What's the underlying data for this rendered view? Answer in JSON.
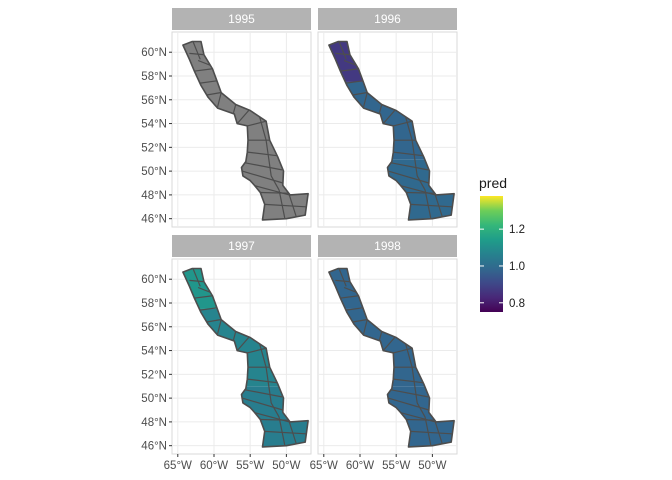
{
  "chart_data": {
    "type": "choropleth-map",
    "title": "",
    "xlabel": "",
    "ylabel": "",
    "facets": [
      "1995",
      "1996",
      "1997",
      "1998"
    ],
    "x_ticks": [
      {
        "value": -65,
        "label": "65°W"
      },
      {
        "value": -60,
        "label": "60°W"
      },
      {
        "value": -55,
        "label": "55°W"
      },
      {
        "value": -50,
        "label": "50°W"
      }
    ],
    "y_ticks": [
      {
        "value": 46,
        "label": "46°N"
      },
      {
        "value": 48,
        "label": "48°N"
      },
      {
        "value": 50,
        "label": "50°N"
      },
      {
        "value": 52,
        "label": "52°N"
      },
      {
        "value": 54,
        "label": "54°N"
      },
      {
        "value": 56,
        "label": "56°N"
      },
      {
        "value": 58,
        "label": "58°N"
      },
      {
        "value": 60,
        "label": "60°N"
      }
    ],
    "xlim": [
      -65.8,
      -46.6
    ],
    "ylim": [
      45.3,
      61.7
    ],
    "outline_lonlat": [
      [
        -64.3,
        60.6
      ],
      [
        -63.0,
        60.9
      ],
      [
        -61.8,
        60.9
      ],
      [
        -61.4,
        59.8
      ],
      [
        -60.2,
        58.6
      ],
      [
        -59.6,
        57.6
      ],
      [
        -59.0,
        56.6
      ],
      [
        -57.0,
        55.6
      ],
      [
        -55.0,
        55.1
      ],
      [
        -52.8,
        54.2
      ],
      [
        -52.3,
        52.6
      ],
      [
        -51.2,
        51.2
      ],
      [
        -50.4,
        50.0
      ],
      [
        -50.5,
        48.8
      ],
      [
        -49.5,
        48.0
      ],
      [
        -47.0,
        48.1
      ],
      [
        -47.4,
        46.3
      ],
      [
        -50.0,
        46.0
      ],
      [
        -53.3,
        45.9
      ],
      [
        -53.0,
        47.2
      ],
      [
        -53.6,
        48.2
      ],
      [
        -54.4,
        48.8
      ],
      [
        -55.0,
        49.2
      ],
      [
        -56.0,
        49.6
      ],
      [
        -56.2,
        50.3
      ],
      [
        -55.6,
        50.8
      ],
      [
        -55.4,
        51.6
      ],
      [
        -55.3,
        52.6
      ],
      [
        -55.4,
        53.8
      ],
      [
        -56.8,
        54.0
      ],
      [
        -57.2,
        54.8
      ],
      [
        -59.5,
        55.3
      ],
      [
        -60.8,
        56.2
      ],
      [
        -61.8,
        57.2
      ],
      [
        -62.7,
        58.4
      ],
      [
        -63.4,
        59.4
      ],
      [
        -64.3,
        60.6
      ]
    ],
    "internal_boundaries_lonlat": [
      [
        [
          -62.9,
          60.9
        ],
        [
          -61.9,
          59.4
        ]
      ],
      [
        [
          -63.4,
          59.9
        ],
        [
          -61.5,
          59.8
        ]
      ],
      [
        [
          -62.2,
          59.3
        ],
        [
          -60.5,
          58.9
        ]
      ],
      [
        [
          -62.8,
          58.4
        ],
        [
          -60.3,
          58.6
        ]
      ],
      [
        [
          -61.9,
          57.4
        ],
        [
          -59.6,
          57.6
        ]
      ],
      [
        [
          -61.5,
          60.5
        ],
        [
          -60.3,
          59.1
        ]
      ],
      [
        [
          -61.0,
          56.4
        ],
        [
          -59.1,
          56.6
        ]
      ],
      [
        [
          -59.5,
          55.4
        ],
        [
          -59.0,
          56.6
        ]
      ],
      [
        [
          -57.3,
          54.9
        ],
        [
          -57.0,
          55.6
        ]
      ],
      [
        [
          -56.8,
          54.0
        ],
        [
          -55.2,
          55.1
        ]
      ],
      [
        [
          -55.4,
          53.8
        ],
        [
          -52.8,
          54.2
        ]
      ],
      [
        [
          -55.3,
          52.6
        ],
        [
          -52.3,
          52.6
        ]
      ],
      [
        [
          -55.4,
          51.6
        ],
        [
          -51.3,
          51.3
        ]
      ],
      [
        [
          -55.7,
          50.7
        ],
        [
          -50.6,
          50.1
        ]
      ],
      [
        [
          -56.1,
          50.0
        ],
        [
          -50.5,
          49.0
        ]
      ],
      [
        [
          -54.5,
          48.8
        ],
        [
          -49.6,
          48.0
        ]
      ],
      [
        [
          -53.6,
          48.2
        ],
        [
          -47.0,
          48.1
        ]
      ],
      [
        [
          -53.0,
          47.2
        ],
        [
          -47.3,
          47.0
        ]
      ],
      [
        [
          -53.9,
          55.0
        ],
        [
          -52.8,
          52.6
        ]
      ],
      [
        [
          -52.8,
          52.6
        ],
        [
          -52.1,
          49.6
        ]
      ],
      [
        [
          -52.1,
          49.6
        ],
        [
          -51.0,
          48.4
        ]
      ],
      [
        [
          -51.0,
          48.4
        ],
        [
          -50.2,
          46.0
        ]
      ],
      [
        [
          -49.6,
          48.0
        ],
        [
          -48.6,
          46.1
        ]
      ]
    ],
    "color_scale": {
      "name": "pred",
      "palette": "viridis",
      "min": 0.75,
      "max": 1.38,
      "ticks": [
        0.8,
        1.0,
        1.2
      ],
      "tick_labels": [
        "0.8",
        "1.0",
        "1.2"
      ],
      "na_color": "#808080"
    },
    "panels": [
      {
        "label": "1995",
        "values": null
      },
      {
        "label": "1996",
        "values": {
          "north": 0.87,
          "mid": 0.98,
          "south": 0.99
        }
      },
      {
        "label": "1997",
        "values": {
          "north": 1.12,
          "mid": 1.07,
          "south": 1.05
        }
      },
      {
        "label": "1998",
        "values": {
          "north": 0.98,
          "mid": 0.98,
          "south": 0.98
        }
      }
    ],
    "grid": true,
    "legend_position": "right"
  }
}
